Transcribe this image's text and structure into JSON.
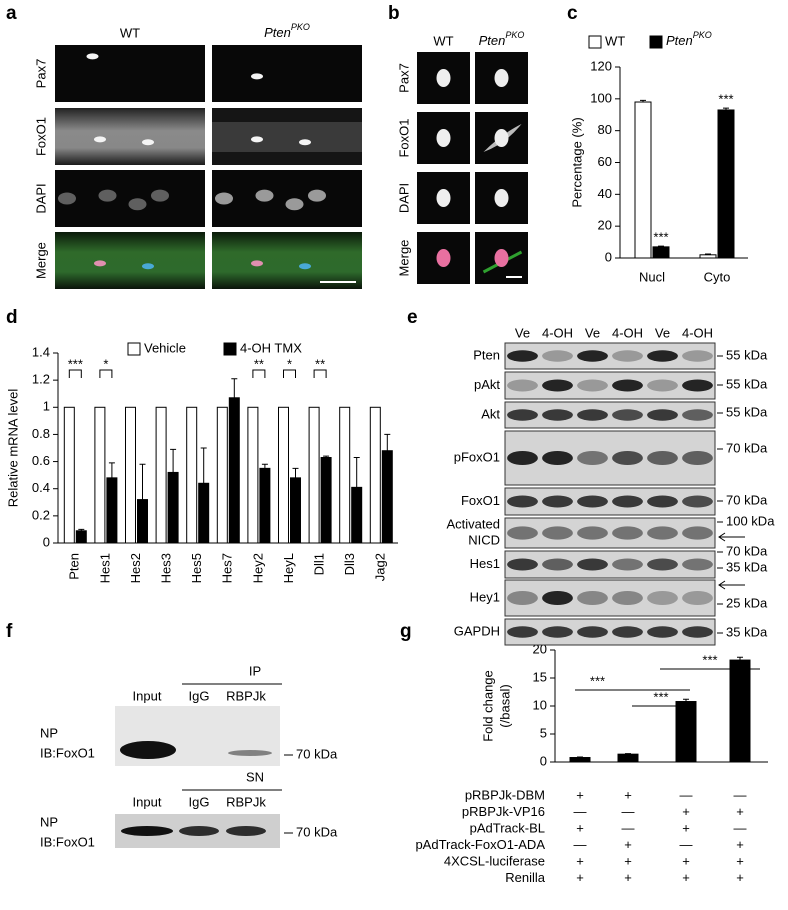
{
  "figure": {
    "panel_labels": [
      "a",
      "b",
      "c",
      "d",
      "e",
      "f",
      "g"
    ],
    "a": {
      "columns": [
        {
          "text": "WT"
        },
        {
          "text": "Pten",
          "text_sup": "PKO"
        }
      ],
      "rows": [
        {
          "text": "Pax7",
          "color": "#e3211c"
        },
        {
          "text": "FoxO1",
          "color": "#2ca02c"
        },
        {
          "text": "DAPI",
          "color": "#1f3fbf"
        },
        {
          "text": "Merge",
          "color": "#000000"
        }
      ]
    },
    "b": {
      "columns": [
        {
          "text": "WT"
        },
        {
          "text": "Pten",
          "text_sup": "PKO"
        }
      ],
      "rows": [
        {
          "text": "Pax7",
          "color": "#e3211c"
        },
        {
          "text": "FoxO1",
          "color": "#2ca02c"
        },
        {
          "text": "DAPI",
          "color": "#1f3fbf"
        },
        {
          "text": "Merge",
          "color": "#000000"
        }
      ]
    },
    "e": {
      "lanes": [
        "Ve",
        "4-OH",
        "Ve",
        "4-OH",
        "Ve",
        "4-OH"
      ],
      "rows": [
        {
          "label": [
            "Pten"
          ],
          "markers": [
            "55 kDa"
          ]
        },
        {
          "label": [
            "pAkt"
          ],
          "markers": [
            "55 kDa"
          ]
        },
        {
          "label": [
            "Akt"
          ],
          "markers": [
            "55 kDa"
          ]
        },
        {
          "label": [
            "pFoxO1"
          ],
          "markers": [
            "70 kDa"
          ]
        },
        {
          "label": [
            "FoxO1"
          ],
          "markers": [
            "70 kDa"
          ]
        },
        {
          "label": [
            "Activated",
            "NICD"
          ],
          "markers": [
            "100 kDa",
            "70 kDa"
          ]
        },
        {
          "label": [
            "Hes1"
          ],
          "markers": [
            "35 kDa"
          ]
        },
        {
          "label": [
            "Hey1"
          ],
          "markers": [
            "25 kDa"
          ]
        },
        {
          "label": [
            "GAPDH"
          ],
          "markers": [
            "35 kDa"
          ]
        }
      ]
    },
    "f": {
      "ip_label": "IP",
      "ip_lanes": [
        "Input",
        "IgG",
        "RBPJk"
      ],
      "ip_blot_labels": [
        "NP",
        "IB:FoxO1"
      ],
      "ip_marker": "70 kDa",
      "sn_label": "SN",
      "sn_lanes": [
        "Input",
        "IgG",
        "RBPJk"
      ],
      "sn_blot_labels": [
        "NP",
        "IB:FoxO1"
      ],
      "sn_marker": "70 kDa"
    }
  },
  "chart_data": [
    {
      "type": "bar",
      "ylabel": "Percentage (%)",
      "categories": [
        "Nucl",
        "Cyto"
      ],
      "series": [
        {
          "name": "WT",
          "color": "#ffffff",
          "values": [
            98,
            2
          ],
          "errors": [
            1,
            0.5
          ]
        },
        {
          "name": "Pten",
          "name_sup": "PKO",
          "color": "#000000",
          "values": [
            7,
            93
          ],
          "errors": [
            0.5,
            1.2
          ],
          "significance": [
            "***",
            "***"
          ]
        }
      ],
      "ylim": [
        0,
        120
      ],
      "yticks": [
        0,
        20,
        40,
        60,
        80,
        100,
        120
      ]
    },
    {
      "type": "bar",
      "ylabel": "Relative mRNA level",
      "categories": [
        "Pten",
        "Hes1",
        "Hes2",
        "Hes3",
        "Hes5",
        "Hes7",
        "Hey2",
        "HeyL",
        "Dll1",
        "Dll3",
        "Jag2"
      ],
      "series": [
        {
          "name": "Vehicle",
          "color": "#ffffff",
          "values": [
            1,
            1,
            1,
            1,
            1,
            1,
            1,
            1,
            1,
            1,
            1
          ]
        },
        {
          "name": "4-OH TMX",
          "color": "#000000",
          "values": [
            0.09,
            0.48,
            0.32,
            0.52,
            0.44,
            1.07,
            0.55,
            0.48,
            0.63,
            0.41,
            0.68
          ],
          "errors": [
            0.01,
            0.11,
            0.26,
            0.17,
            0.26,
            0.14,
            0.03,
            0.07,
            0.01,
            0.22,
            0.12
          ]
        }
      ],
      "significance": [
        "***",
        "*",
        null,
        null,
        null,
        null,
        "**",
        "*",
        "**",
        null,
        null
      ],
      "ylim": [
        0,
        1.4
      ],
      "yticks": [
        0,
        0.2,
        0.4,
        0.6,
        0.8,
        1,
        1.2,
        1.4
      ]
    },
    {
      "type": "bar",
      "ylabel": [
        "Fold change",
        "(/basal)"
      ],
      "series": [
        {
          "color": "#000000",
          "values": [
            0.8,
            1.4,
            10.8,
            18.2
          ],
          "errors": [
            0.1,
            0.1,
            0.4,
            0.5
          ]
        }
      ],
      "annotations": [
        "***",
        "***",
        "***"
      ],
      "conditions": [
        {
          "label": "pRBPJk-DBM",
          "signs": [
            "+",
            "+",
            "—",
            "—"
          ]
        },
        {
          "label": "pRBPJk-VP16",
          "signs": [
            "—",
            "—",
            "+",
            "+"
          ]
        },
        {
          "label": "pAdTrack-BL",
          "signs": [
            "+",
            "—",
            "+",
            "—"
          ]
        },
        {
          "label": "pAdTrack-FoxO1-ADA",
          "signs": [
            "—",
            "+",
            "—",
            "+"
          ]
        },
        {
          "label": "4XCSL-luciferase",
          "signs": [
            "+",
            "+",
            "+",
            "+"
          ]
        },
        {
          "label": "Renilla",
          "signs": [
            "+",
            "+",
            "+",
            "+"
          ]
        }
      ],
      "ylim": [
        0,
        20
      ],
      "yticks": [
        0,
        5,
        10,
        15,
        20
      ]
    }
  ]
}
